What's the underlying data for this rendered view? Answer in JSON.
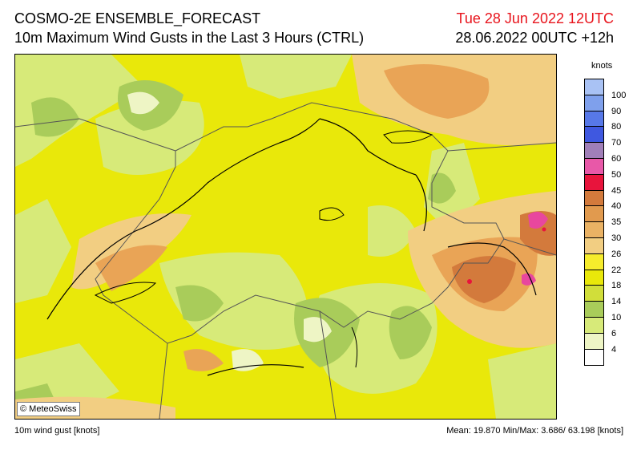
{
  "header": {
    "title": "COSMO-2E ENSEMBLE_FORECAST",
    "subtitle": "10m Maximum Wind Gusts in the Last 3 Hours (CTRL)",
    "valid_time": "Tue 28 Jun 2022 12UTC",
    "run_time": "28.06.2022 00UTC +12h"
  },
  "map": {
    "credit": "© MeteoSwiss",
    "field_colors": {
      "base": "#e9e80a",
      "light_green": "#d7ea79",
      "green": "#a9cc5a",
      "pale": "#eef5c5",
      "peach": "#f2ce82",
      "orange": "#e9a456",
      "dark_orange": "#d37a3c",
      "magenta": "#e8479e",
      "red": "#e8143c"
    },
    "contour_color": "#000000",
    "border_color": "#555555"
  },
  "legend": {
    "unit": "knots",
    "ticks": [
      "100",
      "90",
      "80",
      "70",
      "60",
      "50",
      "45",
      "40",
      "35",
      "30",
      "26",
      "22",
      "18",
      "14",
      "10",
      "6",
      "4"
    ],
    "colors": [
      "#a9c2f4",
      "#7fa0ec",
      "#5778e8",
      "#3f58e0",
      "#a07fb8",
      "#e858a8",
      "#e8143c",
      "#d37a3c",
      "#e19a4e",
      "#eab264",
      "#f2ce82",
      "#f6ec2c",
      "#e9e80a",
      "#d1de3a",
      "#a9cc5a",
      "#d7ea79",
      "#eef5c5",
      "#ffffff"
    ]
  },
  "footer": {
    "left": "10m wind gust [knots]",
    "right": "Mean:  19.870  Min/Max:   3.686/ 63.198 [knots]"
  }
}
